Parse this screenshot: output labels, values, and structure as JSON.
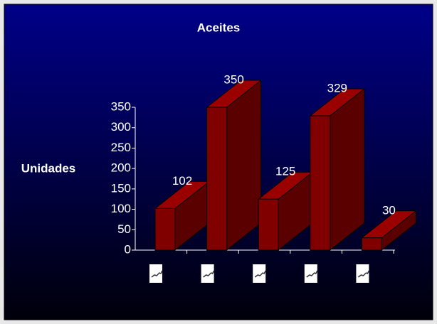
{
  "chart_data": {
    "type": "bar3d",
    "title": "Aceites",
    "y_label": "Unidades",
    "categories": [
      null,
      null,
      null,
      null,
      null
    ],
    "values": [
      102,
      350,
      125,
      329,
      30
    ],
    "color": "#800000",
    "ylim": [
      0,
      350
    ],
    "yticks": [
      0,
      50,
      100,
      150,
      200,
      250,
      300,
      350
    ]
  }
}
